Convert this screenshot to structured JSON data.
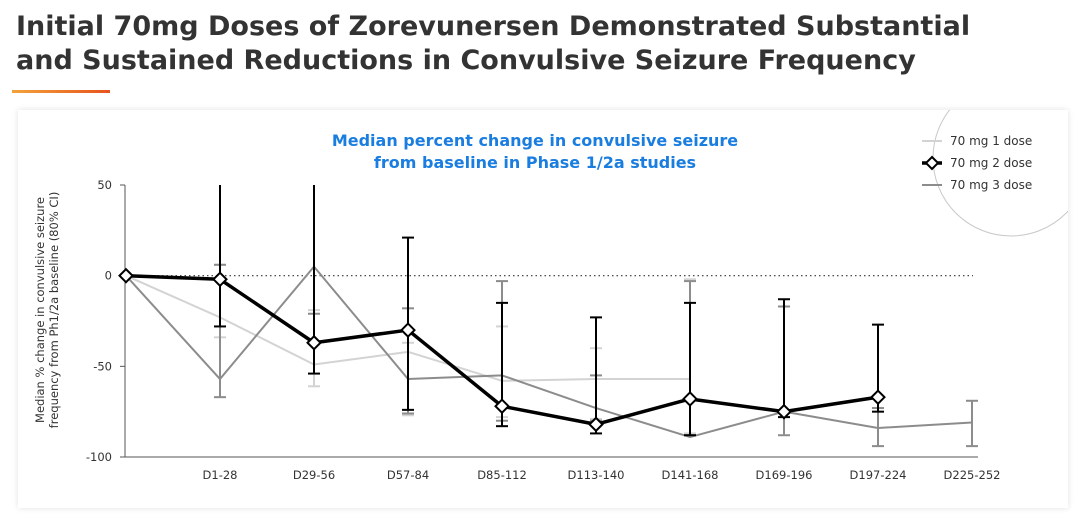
{
  "header": {
    "title_line1": "Initial 70mg Doses of Zorevunersen Demonstrated Substantial",
    "title_line2": "and Sustained Reductions in Convulsive Seizure Frequency"
  },
  "colors": {
    "accent_start": "#f2a33a",
    "accent_end": "#e8531e",
    "chart_title": "#1a7de0"
  },
  "chart_data": {
    "type": "line",
    "title_line1": "Median percent change in convulsive seizure",
    "title_line2": "from baseline in Phase 1/2a studies",
    "ylabel_line1": "Median % change in convulsive seizure",
    "ylabel_line2": "frequency from Ph1/2a baseline (80% CI)",
    "xlabel": "",
    "categories": [
      "",
      "D1-28",
      "D29-56",
      "D57-84",
      "D85-112",
      "D113-140",
      "D141-168",
      "D169-196",
      "D197-224",
      "D225-252"
    ],
    "ylim": [
      -100,
      50
    ],
    "yticks": [
      50,
      0,
      -50,
      -100
    ],
    "reference_line": 0,
    "legend_position": "top-right",
    "series": [
      {
        "name": "70 mg 1 dose",
        "color": "#d3d3d3",
        "width": 2,
        "marker": "none",
        "values": [
          0,
          -23,
          -49,
          -42,
          -58,
          -57,
          -57,
          null,
          null,
          null
        ],
        "ci": [
          null,
          [
            -34,
            6
          ],
          [
            -61,
            -19
          ],
          [
            -77,
            -37
          ],
          [
            -78,
            -28
          ],
          [
            -79,
            -40
          ],
          [
            -87,
            -2
          ],
          null,
          null,
          null
        ]
      },
      {
        "name": "70 mg 2 dose",
        "color": "#000000",
        "width": 3.5,
        "marker": "diamond",
        "values": [
          0,
          -2,
          -37,
          -30,
          -72,
          -82,
          -68,
          -75,
          -67,
          null
        ],
        "ci": [
          null,
          [
            -28,
            50
          ],
          [
            -54,
            50
          ],
          [
            -74,
            21
          ],
          [
            -83,
            -15
          ],
          [
            -87,
            -23
          ],
          [
            -88,
            -15
          ],
          [
            -78,
            -13
          ],
          [
            -75,
            -27
          ],
          null
        ]
      },
      {
        "name": "70 mg 3 dose",
        "color": "#8c8c8c",
        "width": 2,
        "marker": "none",
        "values": [
          0,
          -57,
          5,
          -57,
          -55,
          -73,
          -89,
          -75,
          -84,
          -81
        ],
        "ci": [
          null,
          [
            -67,
            6
          ],
          [
            -21,
            50
          ],
          [
            -76,
            -18
          ],
          [
            -80,
            -3
          ],
          [
            -80,
            -55
          ],
          [
            -88,
            -3
          ],
          [
            -88,
            -17
          ],
          [
            -94,
            -73
          ],
          [
            -94,
            -69
          ]
        ]
      }
    ]
  }
}
